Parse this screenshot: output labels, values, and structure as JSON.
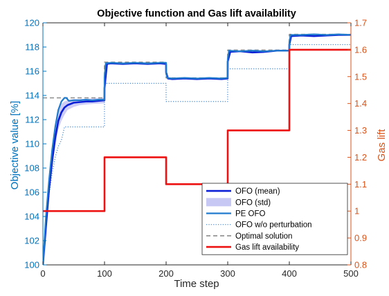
{
  "chart_data": {
    "type": "line",
    "title": "Objective function and Gas lift availability",
    "xlabel": "Time step",
    "ylabel_left": "Objective value [%]",
    "ylabel_right": "Gas lift",
    "xlim": [
      0,
      500
    ],
    "ylim_left": [
      100,
      120
    ],
    "ylim_right": [
      0.8,
      1.7
    ],
    "x_ticks": [
      "0",
      "100",
      "200",
      "300",
      "400",
      "500"
    ],
    "y_ticks_left": [
      "100",
      "102",
      "104",
      "106",
      "108",
      "110",
      "112",
      "114",
      "116",
      "118",
      "120"
    ],
    "y_ticks_right": [
      "0.8",
      "0.9",
      "1",
      "1.1",
      "1.2",
      "1.3",
      "1.4",
      "1.5",
      "1.6",
      "1.7"
    ],
    "grid": false,
    "legend_position": "bottom-right",
    "colors": {
      "left_axis": "#0072BD",
      "right_axis": "#D95319",
      "ofo_mean": "#0A1FD6",
      "ofo_std": "#C8C8F5",
      "pe_ofo": "#1F7ACD",
      "ofo_no_pert": "#3C82D2",
      "optimal": "#8C8C8C",
      "gas_lift": "#EE1111"
    },
    "series": [
      {
        "name": "OFO (mean)",
        "axis": "left",
        "style": "solid",
        "x": [
          0,
          5,
          10,
          15,
          20,
          25,
          30,
          35,
          40,
          45,
          50,
          60,
          70,
          80,
          90,
          99.9,
          100,
          104,
          110,
          130,
          150,
          170,
          190,
          199.9,
          200,
          203,
          210,
          230,
          250,
          270,
          290,
          299.9,
          300,
          304,
          320,
          340,
          360,
          380,
          399.9,
          400,
          403,
          420,
          440,
          460,
          480,
          500
        ],
        "y": [
          100,
          103.2,
          106.3,
          108.6,
          110.5,
          111.9,
          112.6,
          113,
          113.2,
          113.3,
          113.4,
          113.45,
          113.5,
          113.5,
          113.55,
          113.6,
          114.6,
          116.6,
          116.65,
          116.6,
          116.65,
          116.6,
          116.65,
          116.6,
          115.9,
          115.4,
          115.35,
          115.4,
          115.35,
          115.4,
          115.35,
          115.4,
          116.8,
          117.6,
          117.65,
          117.55,
          117.6,
          117.7,
          117.7,
          118.2,
          118.9,
          118.95,
          118.9,
          118.95,
          119,
          119
        ]
      },
      {
        "name": "OFO (std)",
        "axis": "left",
        "style": "band",
        "x": [
          0,
          5,
          10,
          15,
          20,
          25,
          30,
          35,
          40,
          50,
          60,
          80,
          100
        ],
        "upper": [
          100.3,
          103.8,
          106.8,
          109.2,
          111.2,
          112.7,
          113.3,
          113.5,
          113.6,
          113.7,
          113.7,
          113.75,
          113.8
        ],
        "lower": [
          100,
          102.7,
          105.8,
          108,
          109.8,
          111.2,
          111.9,
          112.4,
          112.8,
          113.05,
          113.2,
          113.3,
          113.35
        ]
      },
      {
        "name": "PE OFO",
        "axis": "left",
        "style": "solid",
        "x": [
          0,
          5,
          10,
          15,
          20,
          25,
          30,
          35,
          38,
          42,
          50,
          60,
          70,
          80,
          90,
          99.9,
          100,
          102,
          110,
          130,
          150,
          170,
          190,
          199.9,
          200,
          202,
          210,
          230,
          250,
          270,
          290,
          299.9,
          300,
          302,
          320,
          340,
          360,
          380,
          399.9,
          400,
          402,
          420,
          440,
          460,
          480,
          500
        ],
        "y": [
          100,
          104,
          107,
          109.5,
          111.4,
          112.8,
          113.5,
          113.8,
          113.8,
          113.55,
          113.6,
          113.6,
          113.65,
          113.6,
          113.65,
          113.65,
          115.5,
          116.65,
          116.7,
          116.65,
          116.7,
          116.65,
          116.7,
          116.7,
          115.8,
          115.45,
          115.4,
          115.45,
          115.4,
          115.45,
          115.4,
          115.45,
          117,
          117.7,
          117.65,
          117.7,
          117.65,
          117.7,
          117.7,
          118.4,
          119,
          119,
          119.05,
          119,
          119.05,
          119
        ]
      },
      {
        "name": "OFO w/o perturbation",
        "axis": "left",
        "style": "dotted",
        "x": [
          0,
          5,
          10,
          15,
          20,
          25,
          30,
          35,
          99.9,
          100,
          199.9,
          200,
          299.9,
          300,
          399.9,
          400,
          500
        ],
        "y": [
          100,
          103.3,
          105.8,
          107.6,
          108.9,
          109.8,
          110.3,
          111.4,
          111.4,
          115,
          115,
          113.5,
          113.5,
          116.2,
          116.2,
          118.2,
          118.2
        ]
      },
      {
        "name": "Optimal solution",
        "axis": "left",
        "style": "dashed",
        "x": [
          0,
          99.9,
          100,
          199.9,
          200,
          299.9,
          300,
          399.9,
          400,
          500
        ],
        "y": [
          113.8,
          113.8,
          116.75,
          116.75,
          115.45,
          115.45,
          117.75,
          117.75,
          119.05,
          119.05
        ]
      },
      {
        "name": "Gas lift availability",
        "axis": "right",
        "style": "solid",
        "x": [
          0,
          100,
          100,
          200,
          200,
          300,
          300,
          400,
          400,
          500
        ],
        "y": [
          1.0,
          1.0,
          1.2,
          1.2,
          1.1,
          1.1,
          1.3,
          1.3,
          1.6,
          1.6
        ]
      }
    ]
  }
}
